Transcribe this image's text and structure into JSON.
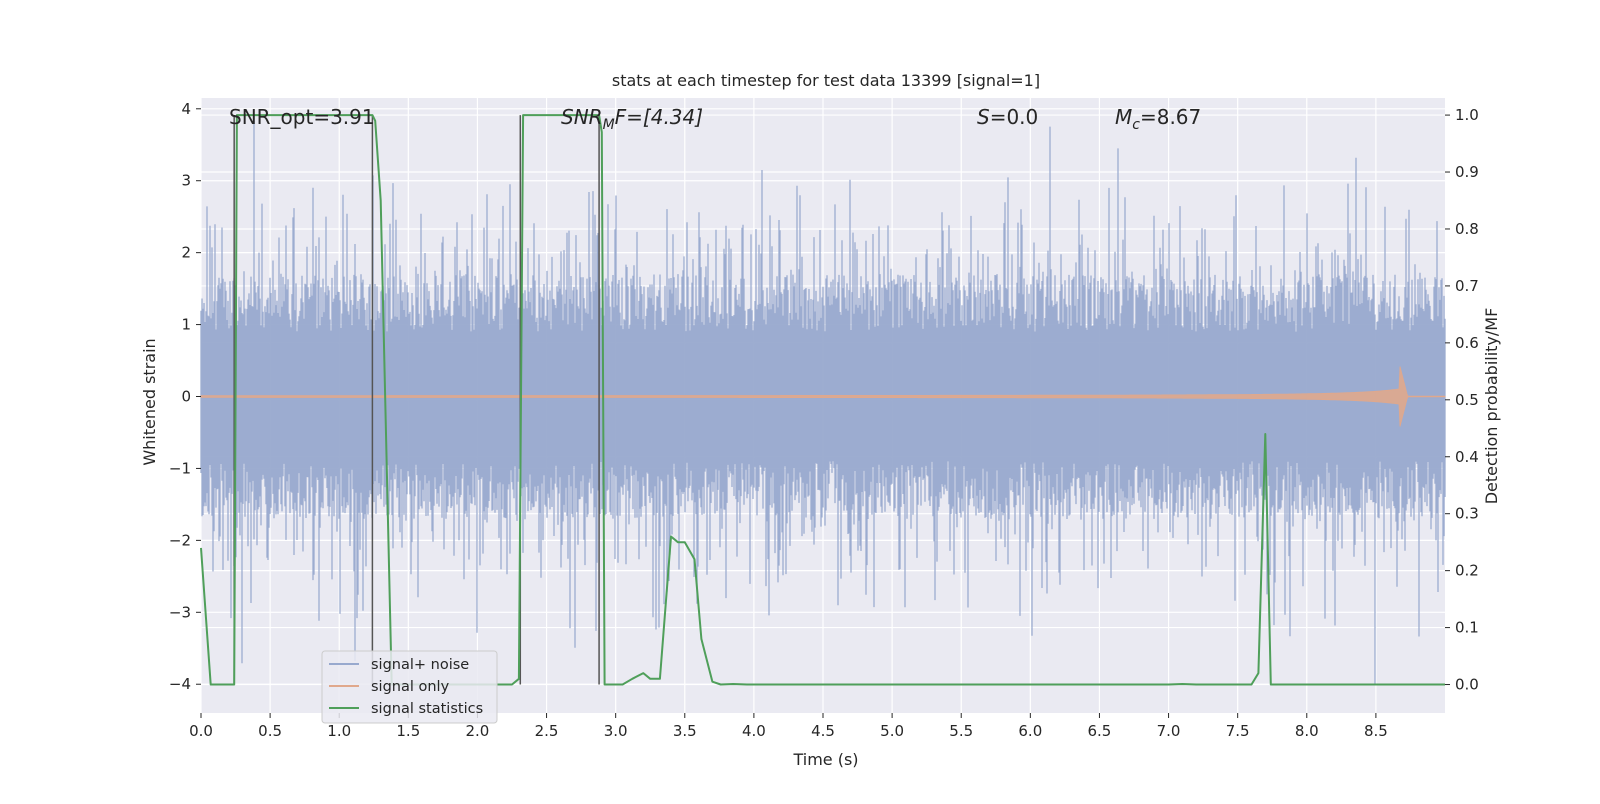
{
  "chart_data": {
    "type": "line",
    "title": "stats at each timestep for test data 13399 [signal=1]",
    "xlabel": "Time (s)",
    "ylabel_left": "Whitened strain",
    "ylabel_right": "Detection probability/MF",
    "xlim": [
      0.0,
      9.0
    ],
    "ylim_left": [
      -4.4,
      4.15
    ],
    "ylim_right": [
      -0.05,
      1.03
    ],
    "xticks": [
      0.0,
      0.5,
      1.0,
      1.5,
      2.0,
      2.5,
      3.0,
      3.5,
      4.0,
      4.5,
      5.0,
      5.5,
      6.0,
      6.5,
      7.0,
      7.5,
      8.0,
      8.5
    ],
    "xtick_labels": [
      "0.0",
      "0.5",
      "1.0",
      "1.5",
      "2.0",
      "2.5",
      "3.0",
      "3.5",
      "4.0",
      "4.5",
      "5.0",
      "5.5",
      "6.0",
      "6.5",
      "7.0",
      "7.5",
      "8.0",
      "8.5"
    ],
    "yticks_left": [
      4,
      3,
      2,
      1,
      0,
      -1,
      -2,
      -3,
      -4
    ],
    "ytick_labels_left": [
      "4",
      "3",
      "2",
      "1",
      "0",
      "−1",
      "−2",
      "−3",
      "−4"
    ],
    "yticks_right": [
      1.0,
      0.9,
      0.8,
      0.7,
      0.6,
      0.5,
      0.4,
      0.3,
      0.2,
      0.1,
      0.0
    ],
    "ytick_labels_right": [
      "1.0",
      "0.9",
      "0.8",
      "0.7",
      "0.6",
      "0.5",
      "0.4",
      "0.3",
      "0.2",
      "0.1",
      "0.0"
    ],
    "grid": true,
    "legend_position": "lower-left",
    "annotations": {
      "snr_opt": "SNR_opt=3.91",
      "snr_mf_base": "SNR",
      "snr_mf_sub": "M",
      "snr_mf_rest": "F=[4.34]",
      "s_italic": "S",
      "s_rest": "=0.0",
      "mc_base": "M",
      "mc_sub": "c",
      "mc_rest": "=8.67"
    },
    "series": [
      {
        "name": "signal+ noise",
        "color": "#98a9ce",
        "axis": "left",
        "description_values": "whitened noisy strain, roughly symmetric about 0 with peaks up to about ±4"
      },
      {
        "name": "signal only",
        "color": "#e0a88c",
        "axis": "left",
        "chirp_end_time": 8.67,
        "chirp_peak_amplitude": 0.45
      },
      {
        "name": "signal statistics",
        "color": "#4f9f5a",
        "axis": "right",
        "x": [
          0.0,
          0.07,
          0.24,
          0.26,
          0.3,
          1.24,
          1.26,
          1.3,
          1.38,
          1.42,
          2.25,
          2.3,
          2.33,
          2.37,
          2.88,
          2.9,
          2.92,
          3.05,
          3.12,
          3.2,
          3.25,
          3.32,
          3.4,
          3.45,
          3.5,
          3.57,
          3.62,
          3.7,
          3.76,
          3.85,
          3.95,
          4.5,
          7.0,
          7.1,
          7.2,
          7.6,
          7.65,
          7.7,
          7.74,
          7.8,
          8.0,
          9.0
        ],
        "values": [
          0.24,
          0.0,
          0.0,
          1.0,
          1.0,
          1.0,
          0.99,
          0.85,
          0.0,
          0.0,
          0.0,
          0.01,
          1.0,
          1.0,
          1.0,
          0.97,
          0.0,
          0.0,
          0.01,
          0.02,
          0.01,
          0.01,
          0.26,
          0.25,
          0.25,
          0.22,
          0.08,
          0.005,
          0.0,
          0.001,
          0.0,
          0.0,
          0.0,
          0.001,
          0.0,
          0.0,
          0.02,
          0.44,
          0.0,
          0.0,
          0.0,
          0.0
        ]
      }
    ],
    "vertical_markers": [
      {
        "x": 0.24,
        "color": "#555555"
      },
      {
        "x": 1.24,
        "color": "#555555"
      },
      {
        "x": 2.31,
        "color": "#555555"
      },
      {
        "x": 2.88,
        "color": "#555555"
      }
    ]
  }
}
